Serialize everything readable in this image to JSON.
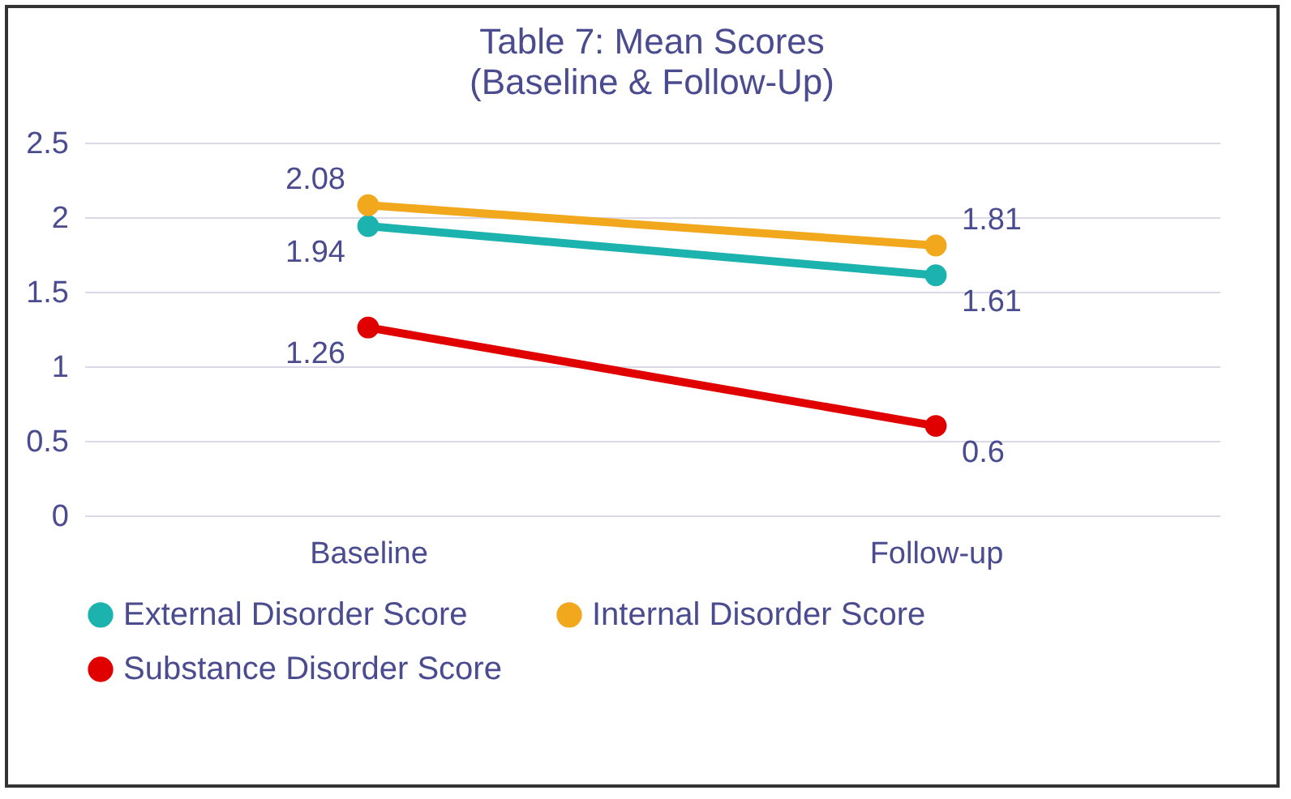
{
  "chart_data": {
    "type": "line",
    "title": "Table 7: Mean Scores",
    "subtitle": "(Baseline & Follow-Up)",
    "categories": [
      "Baseline",
      "Follow-up"
    ],
    "series": [
      {
        "name": "External Disorder Score",
        "color": "#1cb2ae",
        "values": [
          1.94,
          1.61
        ]
      },
      {
        "name": "Internal Disorder Score",
        "color": "#f2a81d",
        "values": [
          2.08,
          1.81
        ]
      },
      {
        "name": "Substance Disorder Score",
        "color": "#e00000",
        "values": [
          1.26,
          0.6
        ]
      }
    ],
    "ylim": [
      0,
      2.5
    ],
    "yticks": [
      0,
      0.5,
      1,
      1.5,
      2,
      2.5
    ],
    "grid": "y",
    "legend": "bottom",
    "marker": "circle",
    "data_labels": true
  }
}
